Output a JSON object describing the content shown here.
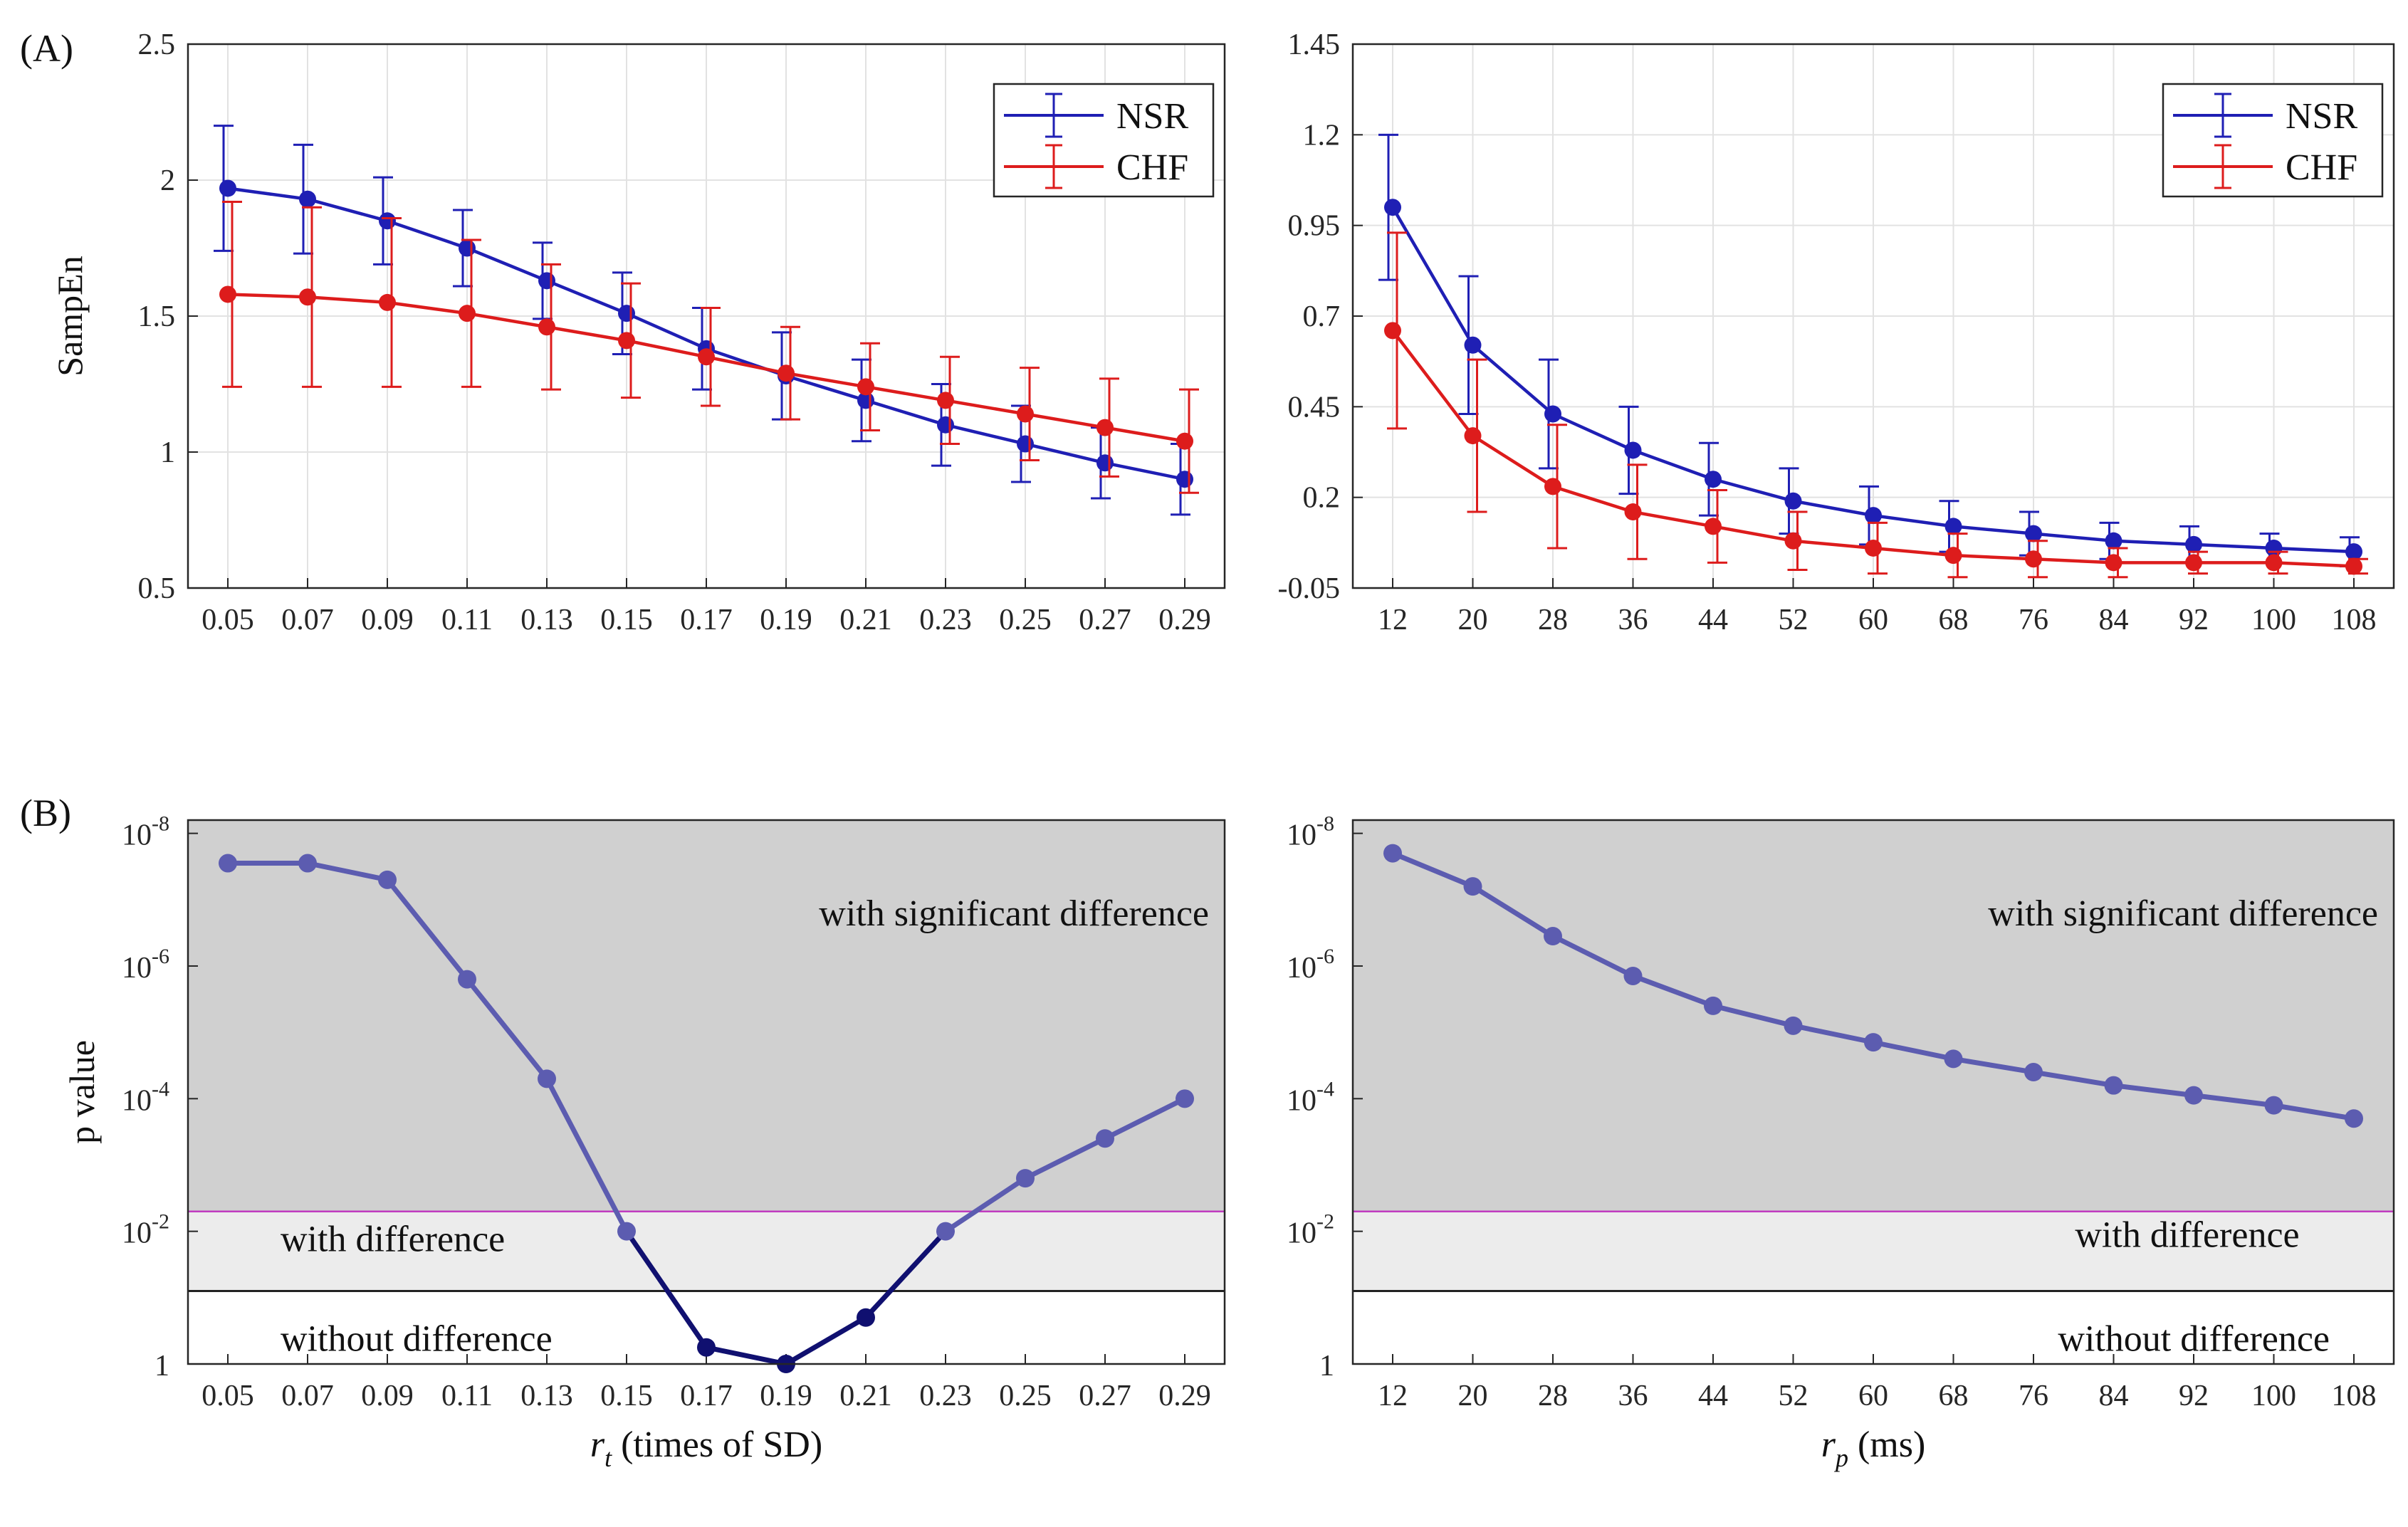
{
  "panel_labels": {
    "A": "(A)",
    "B": "(B)"
  },
  "colors": {
    "nsr": "#1f1fb4",
    "chf": "#dd1c1c",
    "pvalue": "#5c5cb0",
    "pvalue_dark": "#101070",
    "threshold": "#c03cc0",
    "shade_sig": "#d0d0d0",
    "shade_diff": "#ececec",
    "grid": "#e2e2e2"
  },
  "chart_data": [
    {
      "id": "A-left",
      "type": "line",
      "error_bars": true,
      "categories": [
        "0.05",
        "0.07",
        "0.09",
        "0.11",
        "0.13",
        "0.15",
        "0.17",
        "0.19",
        "0.21",
        "0.23",
        "0.25",
        "0.27",
        "0.29"
      ],
      "ylabel": "SampEn",
      "ylim": [
        0.5,
        2.5
      ],
      "yticks": [
        0.5,
        1,
        1.5,
        2,
        2.5
      ],
      "ytick_labels": [
        "0.5",
        "1",
        "1.5",
        "2",
        "2.5"
      ],
      "legend": {
        "placement": "top-right",
        "entries": [
          "NSR",
          "CHF"
        ]
      },
      "series": [
        {
          "name": "NSR",
          "values": [
            1.97,
            1.93,
            1.85,
            1.75,
            1.63,
            1.51,
            1.38,
            1.28,
            1.19,
            1.1,
            1.03,
            0.96,
            0.9
          ],
          "err": [
            0.23,
            0.2,
            0.16,
            0.14,
            0.14,
            0.15,
            0.15,
            0.16,
            0.15,
            0.15,
            0.14,
            0.13,
            0.13
          ]
        },
        {
          "name": "CHF",
          "values": [
            1.58,
            1.57,
            1.55,
            1.51,
            1.46,
            1.41,
            1.35,
            1.29,
            1.24,
            1.19,
            1.14,
            1.09,
            1.04
          ],
          "err": [
            0.34,
            0.33,
            0.31,
            0.27,
            0.23,
            0.21,
            0.18,
            0.17,
            0.16,
            0.16,
            0.17,
            0.18,
            0.19
          ]
        }
      ]
    },
    {
      "id": "A-right",
      "type": "line",
      "error_bars": true,
      "categories": [
        "12",
        "20",
        "28",
        "36",
        "44",
        "52",
        "60",
        "68",
        "76",
        "84",
        "92",
        "100",
        "108"
      ],
      "ylabel": "",
      "ylim": [
        -0.05,
        1.45
      ],
      "yticks": [
        -0.05,
        0.2,
        0.45,
        0.7,
        0.95,
        1.2,
        1.45
      ],
      "ytick_labels": [
        "-0.05",
        "0.2",
        "0.45",
        "0.7",
        "0.95",
        "1.2",
        "1.45"
      ],
      "legend": {
        "placement": "top-right",
        "entries": [
          "NSR",
          "CHF"
        ]
      },
      "series": [
        {
          "name": "NSR",
          "values": [
            1.0,
            0.62,
            0.43,
            0.33,
            0.25,
            0.19,
            0.15,
            0.12,
            0.1,
            0.08,
            0.07,
            0.06,
            0.05
          ],
          "err": [
            0.2,
            0.19,
            0.15,
            0.12,
            0.1,
            0.09,
            0.08,
            0.07,
            0.06,
            0.05,
            0.05,
            0.04,
            0.04
          ]
        },
        {
          "name": "CHF",
          "values": [
            0.66,
            0.37,
            0.23,
            0.16,
            0.12,
            0.08,
            0.06,
            0.04,
            0.03,
            0.02,
            0.02,
            0.02,
            0.01
          ],
          "err": [
            0.27,
            0.21,
            0.17,
            0.13,
            0.1,
            0.08,
            0.07,
            0.06,
            0.05,
            0.04,
            0.03,
            0.03,
            0.02
          ]
        }
      ]
    },
    {
      "id": "B-left",
      "type": "line",
      "categories": [
        "0.05",
        "0.07",
        "0.09",
        "0.11",
        "0.13",
        "0.15",
        "0.17",
        "0.19",
        "0.21",
        "0.23",
        "0.25",
        "0.27",
        "0.29"
      ],
      "xlabel_symbol": "r",
      "xlabel_sub": "t",
      "xlabel_rest": " (times of SD)",
      "ylabel": "p value",
      "y_scale": "log",
      "ylim_exp": [
        0,
        8.2
      ],
      "yticks_exp": [
        0,
        2,
        4,
        6,
        8
      ],
      "ytick_base": "10",
      "ytick_labels": [
        "1",
        "10",
        "10",
        "10",
        "10"
      ],
      "ytick_exponents": [
        "",
        "-2",
        "-4",
        "-6",
        "-8"
      ],
      "regions": {
        "significant": "with significant difference",
        "difference": "with difference",
        "none": "without difference"
      },
      "thresholds_exp": {
        "significant": 2.3,
        "difference": 1.1
      },
      "values_exp": [
        7.55,
        7.55,
        7.3,
        5.8,
        4.3,
        2.0,
        0.25,
        0.0,
        0.7,
        2.0,
        2.8,
        3.4,
        4.0
      ]
    },
    {
      "id": "B-right",
      "type": "line",
      "categories": [
        "12",
        "20",
        "28",
        "36",
        "44",
        "52",
        "60",
        "68",
        "76",
        "84",
        "92",
        "100",
        "108"
      ],
      "xlabel_symbol": "r",
      "xlabel_sub": "p",
      "xlabel_rest": " (ms)",
      "ylabel": "",
      "y_scale": "log",
      "ylim_exp": [
        0,
        8.2
      ],
      "yticks_exp": [
        0,
        2,
        4,
        6,
        8
      ],
      "ytick_base": "10",
      "ytick_labels": [
        "1",
        "10",
        "10",
        "10",
        "10"
      ],
      "ytick_exponents": [
        "",
        "-2",
        "-4",
        "-6",
        "-8"
      ],
      "regions": {
        "significant": "with significant difference",
        "difference": "with difference",
        "none": "without difference"
      },
      "thresholds_exp": {
        "significant": 2.3,
        "difference": 1.1
      },
      "values_exp": [
        7.7,
        7.2,
        6.45,
        5.85,
        5.4,
        5.1,
        4.85,
        4.6,
        4.4,
        4.2,
        4.05,
        3.9,
        3.7
      ]
    }
  ]
}
